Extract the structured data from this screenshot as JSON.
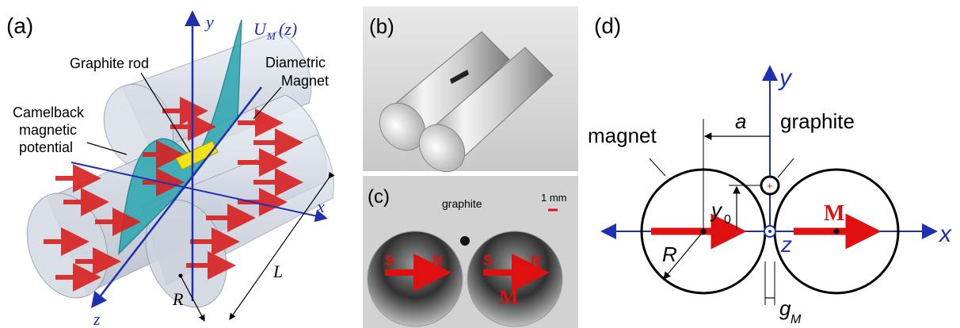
{
  "panel_a": {
    "label": "(a)",
    "axis_y": "y",
    "axis_x": "x",
    "axis_z": "z",
    "potential_label": "U",
    "potential_sub": "M",
    "potential_arg": "(z)",
    "graphite_rod": "Graphite rod",
    "diametric_1": "Diametric",
    "diametric_2": "Magnet",
    "camelback_1": "Camelback",
    "camelback_2": "magnetic",
    "camelback_3": "potential",
    "length_L": "L",
    "radius_R": "R"
  },
  "panel_b": {
    "label": "(b)"
  },
  "panel_c": {
    "label": "(c)",
    "graphite": "graphite",
    "scale": "1 mm",
    "pole_s": "S",
    "pole_n": "N",
    "magnetization": "M"
  },
  "panel_d": {
    "label": "(d)",
    "axis_y": "y",
    "axis_x": "x",
    "axis_z": "z",
    "magnet": "magnet",
    "graphite": "graphite",
    "a": "a",
    "y0_main": "y",
    "y0_sub": "0",
    "R": "R",
    "M": "M",
    "gap_main": "g",
    "gap_sub": "M"
  },
  "colors": {
    "axis_blue": "#1f2fb0",
    "arrow_red": "#e01010",
    "teal": "#2aa6b0",
    "graphite_yellow": "#f2e21a"
  }
}
